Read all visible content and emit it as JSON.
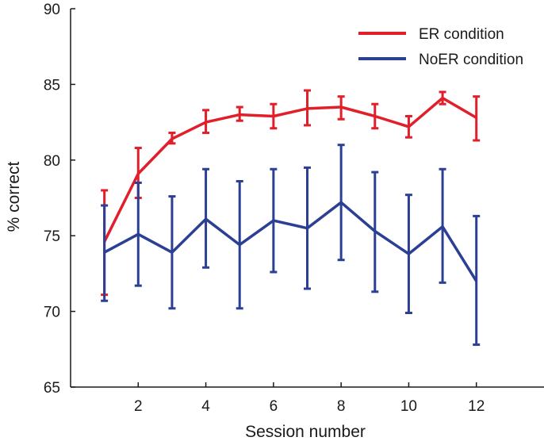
{
  "chart_data": {
    "type": "line",
    "xlabel": "Session number",
    "ylabel": "% correct",
    "xlim": [
      0,
      14
    ],
    "ylim": [
      65,
      90
    ],
    "x_ticks": [
      2,
      4,
      6,
      8,
      10,
      12
    ],
    "y_ticks": [
      65,
      70,
      75,
      80,
      85,
      90
    ],
    "grid": false,
    "legend_position": "top-right",
    "x": [
      1,
      2,
      3,
      4,
      5,
      6,
      7,
      8,
      9,
      10,
      11,
      12
    ],
    "series": [
      {
        "name": "ER condition",
        "color": "#e11f2b",
        "values": [
          74.6,
          79.1,
          81.4,
          82.5,
          83.0,
          82.9,
          83.4,
          83.5,
          82.9,
          82.2,
          84.1,
          82.8
        ],
        "error_low": [
          71.1,
          77.5,
          81.1,
          81.8,
          82.6,
          82.1,
          82.3,
          82.7,
          82.1,
          81.5,
          83.7,
          81.3
        ],
        "error_high": [
          78.0,
          80.8,
          81.8,
          83.3,
          83.5,
          83.7,
          84.6,
          84.2,
          83.7,
          82.9,
          84.5,
          84.2
        ]
      },
      {
        "name": "NoER condition",
        "color": "#2b3f94",
        "values": [
          73.9,
          75.1,
          73.9,
          76.1,
          74.4,
          76.0,
          75.5,
          77.2,
          75.3,
          73.8,
          75.6,
          72.0
        ],
        "error_low": [
          70.7,
          71.7,
          70.2,
          72.9,
          70.2,
          72.6,
          71.5,
          73.4,
          71.3,
          69.9,
          71.9,
          67.8
        ],
        "error_high": [
          77.0,
          78.5,
          77.6,
          79.4,
          78.6,
          79.4,
          79.5,
          81.0,
          79.2,
          77.7,
          79.4,
          76.3
        ]
      }
    ]
  }
}
